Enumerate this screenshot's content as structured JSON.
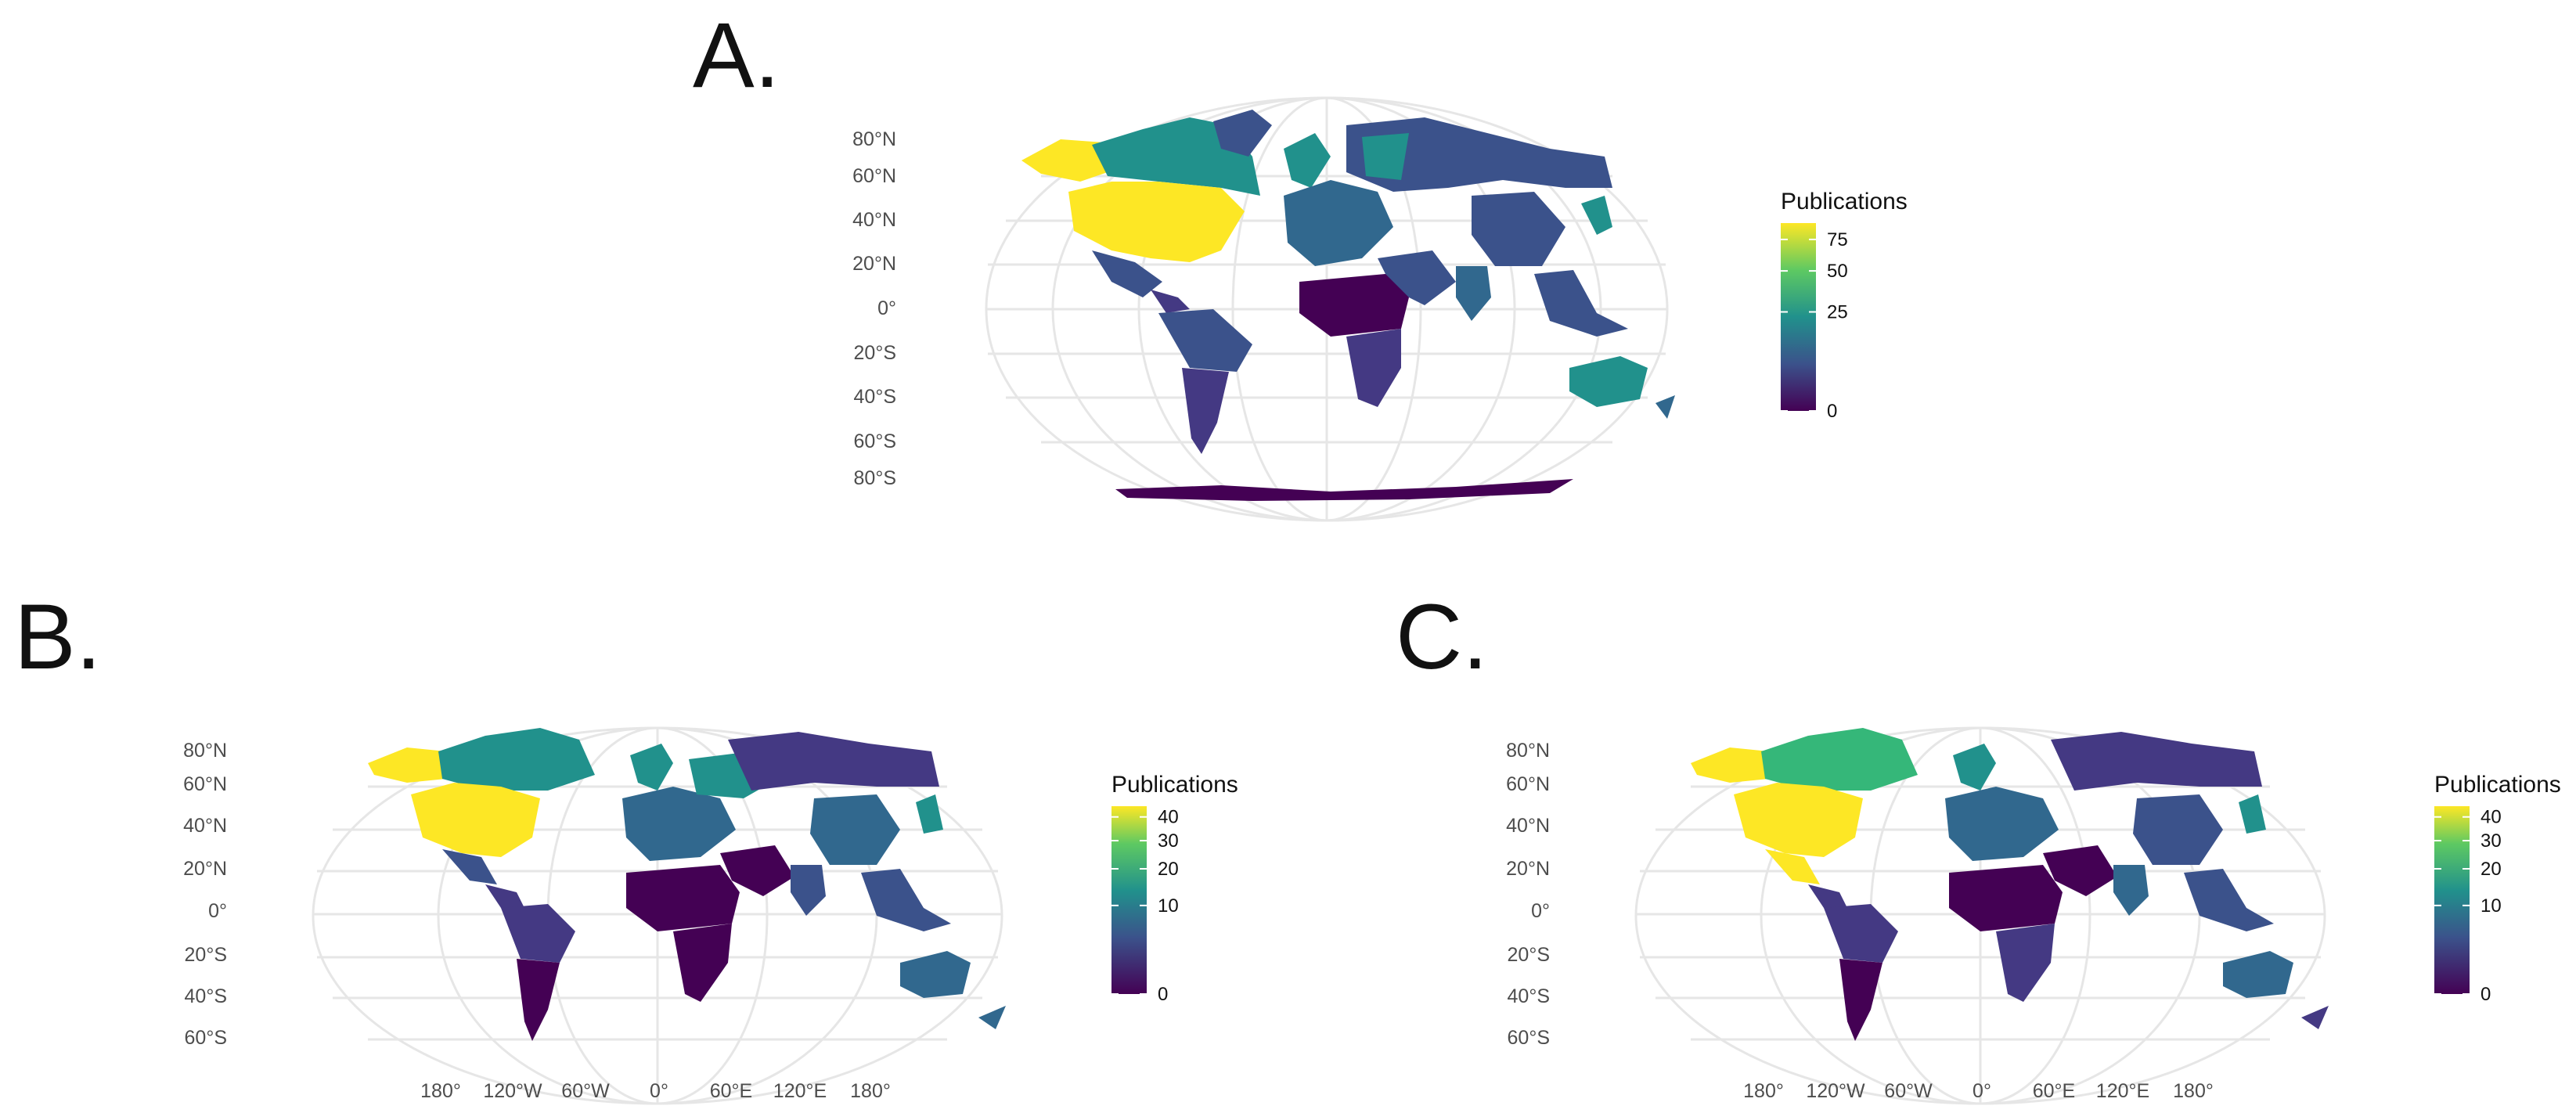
{
  "panels": [
    {
      "id": "A",
      "letter": "A.",
      "lat_labels": [
        "80°N",
        "60°N",
        "40°N",
        "20°N",
        "0°",
        "20°S",
        "40°S",
        "60°S",
        "80°S"
      ],
      "lon_labels": [],
      "legend": {
        "title": "Publications",
        "ticks": [
          "75",
          "50",
          "25",
          "0"
        ],
        "tick_values": [
          75,
          50,
          25,
          0
        ],
        "max": 90
      }
    },
    {
      "id": "B",
      "letter": "B.",
      "lat_labels": [
        "80°N",
        "60°N",
        "40°N",
        "20°N",
        "0°",
        "20°S",
        "40°S",
        "60°S"
      ],
      "lon_labels": [
        "180°",
        "120°W",
        "60°W",
        "0°",
        "60°E",
        "120°E",
        "180°"
      ],
      "legend": {
        "title": "Publications",
        "ticks": [
          "40",
          "30",
          "20",
          "10",
          "0"
        ],
        "tick_values": [
          40,
          30,
          20,
          10,
          0
        ],
        "max": 45
      }
    },
    {
      "id": "C",
      "letter": "C.",
      "lat_labels": [
        "80°N",
        "60°N",
        "40°N",
        "20°N",
        "0°",
        "20°S",
        "40°S",
        "60°S"
      ],
      "lon_labels": [
        "180°",
        "120°W",
        "60°W",
        "0°",
        "60°E",
        "120°E",
        "180°"
      ],
      "legend": {
        "title": "Publications",
        "ticks": [
          "40",
          "30",
          "20",
          "10",
          "0"
        ],
        "tick_values": [
          40,
          30,
          20,
          10,
          0
        ],
        "max": 45
      }
    }
  ],
  "colors": {
    "yellow": "#fde725",
    "yellowgreen": "#b5de2b",
    "green": "#35b779",
    "teal": "#21918c",
    "blue": "#31688e",
    "indigo": "#3b528b",
    "purple": "#443983",
    "dark": "#440154",
    "grid": "#e6e6e6"
  }
}
